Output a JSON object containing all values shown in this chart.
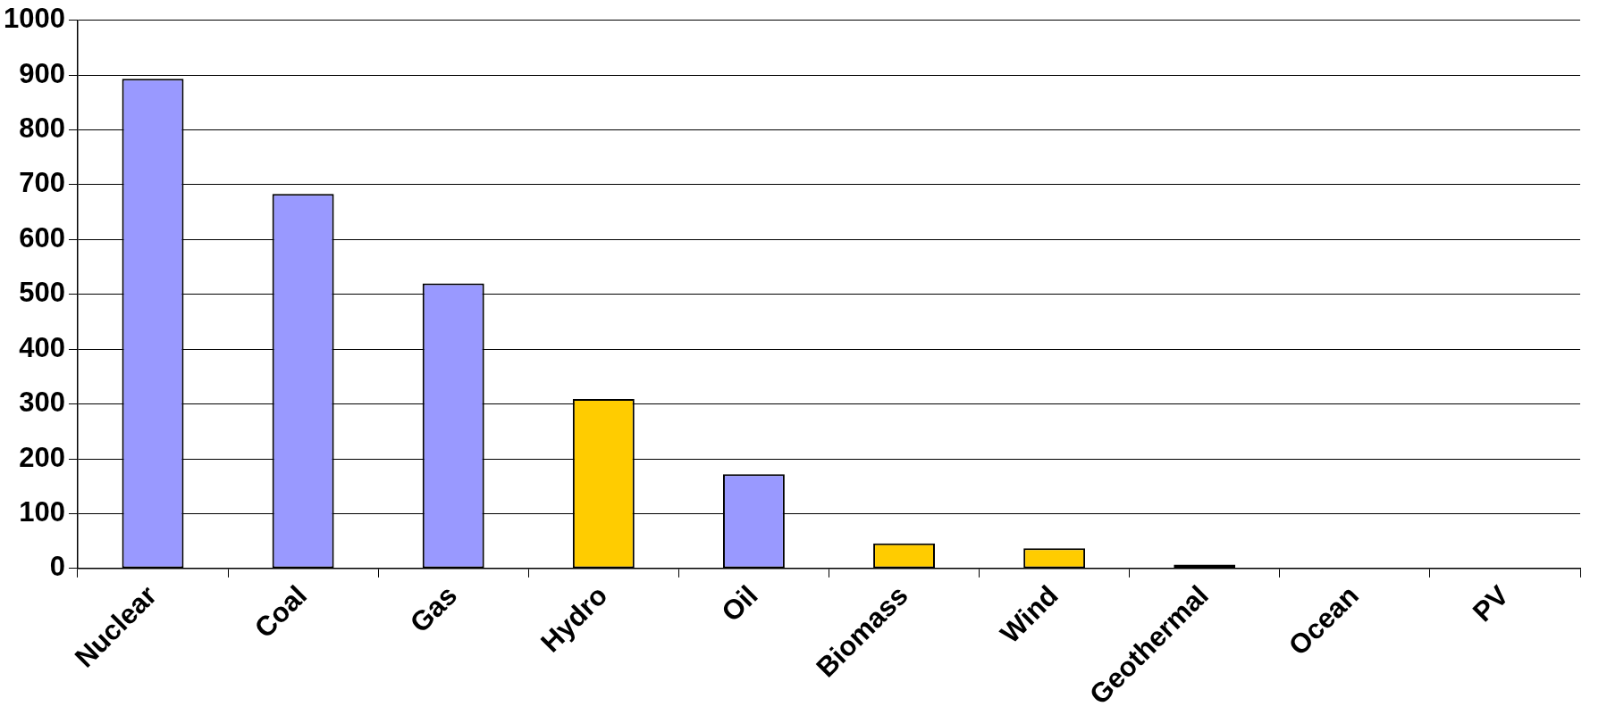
{
  "chart_data": {
    "type": "bar",
    "categories": [
      "Nuclear",
      "Coal",
      "Gas",
      "Hydro",
      "Oil",
      "Biomass",
      "Wind",
      "Geothermal",
      "Ocean",
      "PV"
    ],
    "values": [
      893,
      683,
      520,
      309,
      172,
      46,
      37,
      7,
      0,
      0
    ],
    "colors": [
      "#9999ff",
      "#9999ff",
      "#9999ff",
      "#ffcc00",
      "#9999ff",
      "#ffcc00",
      "#ffcc00",
      "#000000",
      "#ffcc00",
      "#ffcc00"
    ],
    "ylim": [
      0,
      1000
    ],
    "yticks": [
      0,
      100,
      200,
      300,
      400,
      500,
      600,
      700,
      800,
      900,
      1000
    ],
    "grid": "y",
    "legend": false
  }
}
